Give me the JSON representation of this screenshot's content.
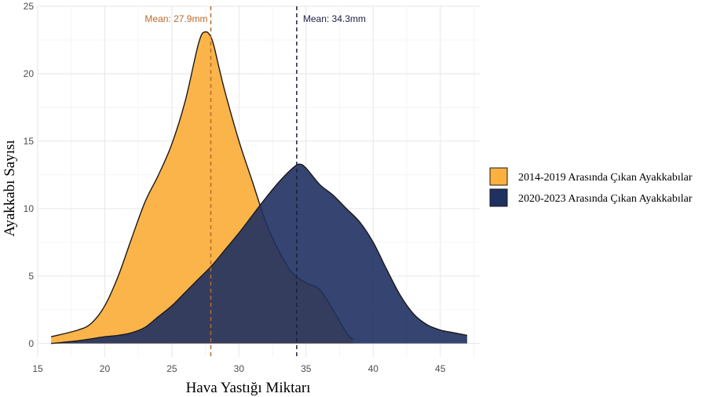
{
  "chart_data": {
    "type": "area",
    "title": "",
    "xlabel": "Hava Yastığı Miktarı",
    "ylabel": "Ayakkabı Sayısı",
    "xlim": [
      15,
      48
    ],
    "ylim": [
      -1,
      25
    ],
    "xticks": [
      15,
      20,
      25,
      30,
      35,
      40,
      45
    ],
    "yticks": [
      0,
      5,
      10,
      15,
      20,
      25
    ],
    "grid": true,
    "legend_position": "right",
    "series": [
      {
        "name": "2014-2019 Arasında Çıkan Ayakkabılar",
        "color": "#fbb040",
        "x": [
          16,
          18,
          19,
          20,
          21,
          22,
          23,
          24,
          25,
          26,
          27,
          27.5,
          28,
          28.5,
          29,
          30,
          31,
          32,
          33,
          34,
          35,
          36,
          37,
          38,
          38.5
        ],
        "y": [
          0.5,
          1.0,
          1.5,
          2.8,
          5.0,
          7.8,
          10.5,
          12.5,
          14.8,
          18.0,
          22.3,
          23.1,
          22.5,
          20.5,
          18.5,
          15.0,
          12.0,
          9.0,
          6.8,
          5.2,
          4.5,
          4.0,
          2.5,
          0.8,
          0.3
        ]
      },
      {
        "name": "2020-2023 Arasında Çıkan Ayakkabılar",
        "color": "#1f3061",
        "x": [
          16,
          18,
          19,
          20,
          21,
          22,
          23,
          24,
          25,
          26,
          27,
          28,
          29,
          30,
          31,
          32,
          33,
          34,
          34.5,
          35,
          36,
          37,
          38,
          39,
          40,
          41,
          42,
          43,
          44,
          45,
          46,
          47
        ],
        "y": [
          0.0,
          0.2,
          0.35,
          0.5,
          0.6,
          0.8,
          1.2,
          2.0,
          2.8,
          3.8,
          4.8,
          5.8,
          7.0,
          8.2,
          9.5,
          10.8,
          12.0,
          13.0,
          13.3,
          13.0,
          11.8,
          11.0,
          10.0,
          9.0,
          7.5,
          5.5,
          3.6,
          2.2,
          1.4,
          1.0,
          0.8,
          0.6
        ]
      }
    ],
    "annotations": [
      {
        "label": "Mean: 27.9mm",
        "x": 27.9,
        "color": "#b86a2c"
      },
      {
        "label": "Mean: 34.3mm",
        "x": 34.3,
        "color": "#1a2040"
      }
    ]
  }
}
